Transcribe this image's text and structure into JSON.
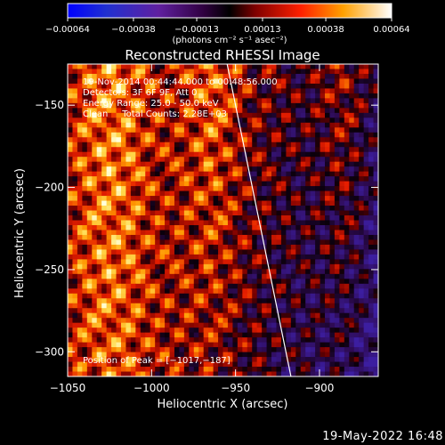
{
  "chart_data": {
    "type": "heatmap",
    "title": "Reconstructed RHESSI Image",
    "xlabel": "Heliocentric X (arcsec)",
    "ylabel": "Heliocentric Y (arcsec)",
    "xlim": [
      -1050,
      -865
    ],
    "ylim": [
      -315,
      -125
    ],
    "x_ticks": [
      {
        "value": -1050,
        "label": "−1050"
      },
      {
        "value": -1000,
        "label": "−1000"
      },
      {
        "value": -950,
        "label": "−950"
      },
      {
        "value": -900,
        "label": "−900"
      }
    ],
    "y_ticks": [
      {
        "value": -150,
        "label": "−150"
      },
      {
        "value": -200,
        "label": "−200"
      },
      {
        "value": -250,
        "label": "−250"
      },
      {
        "value": -300,
        "label": "−300"
      }
    ],
    "colorbar": {
      "range": [
        -0.00064,
        0.00064
      ],
      "tick_values": [
        -0.00064,
        -0.00038,
        -0.00013,
        0.00013,
        0.00038,
        0.00064
      ],
      "tick_labels": [
        "−0.00064",
        "−0.00038",
        "−0.00013",
        "0.00013",
        "0.00038",
        "0.00064"
      ],
      "unit_label": "(photons cm⁻² s⁻¹ asec⁻²)"
    },
    "annotations": {
      "time": "19-Nov-2014 00:44:44.000 to 00:48:56.000",
      "detectors": "Detectors: 3F 6F 9F, Att 0",
      "energy": "Energy Range: 25.0 - 50.0 keV",
      "algorithm": "Clean     Total Counts: 2.28E+03",
      "peak": "Position of Peak = [−1017,−187]"
    },
    "peak_position": [
      -1017,
      -187
    ],
    "limb_line": [
      {
        "x": -955,
        "y": -125
      },
      {
        "x": -917,
        "y": -315
      }
    ]
  },
  "footer": {
    "date": "19-May-2022 16:48"
  }
}
